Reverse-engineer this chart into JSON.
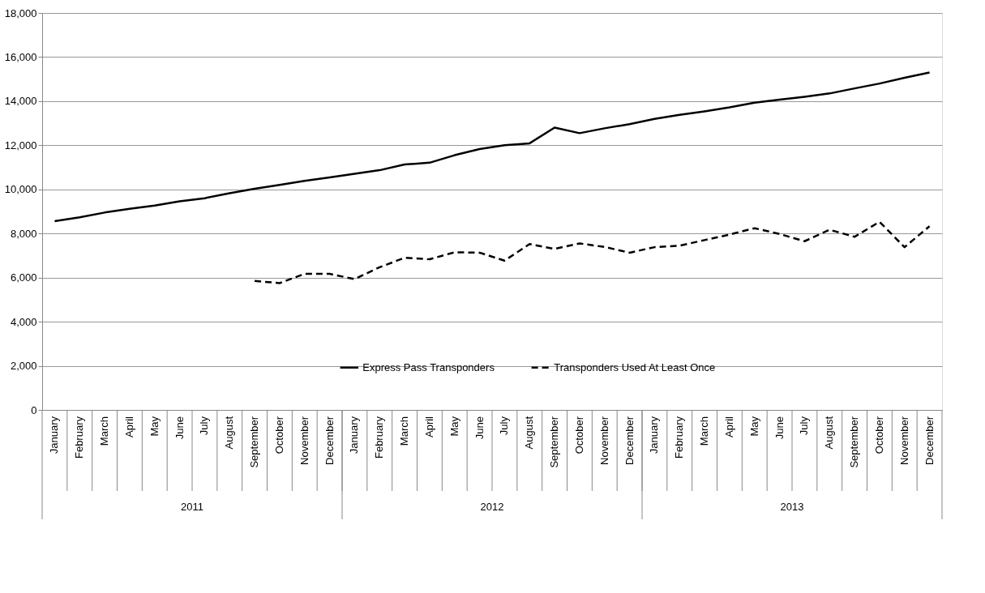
{
  "chart_data": {
    "type": "line",
    "categories": [
      "January",
      "February",
      "March",
      "April",
      "May",
      "June",
      "July",
      "August",
      "September",
      "October",
      "November",
      "December",
      "January",
      "February",
      "March",
      "April",
      "May",
      "June",
      "July",
      "August",
      "September",
      "October",
      "November",
      "December",
      "January",
      "February",
      "March",
      "April",
      "May",
      "June",
      "July",
      "August",
      "September",
      "October",
      "November",
      "December"
    ],
    "annotations": [
      "2011",
      "2012",
      "2013"
    ],
    "series": [
      {
        "name": "Express Pass Transponders",
        "color": "#000000",
        "line_style": "solid",
        "values": [
          8560,
          8730,
          8950,
          9120,
          9270,
          9460,
          9600,
          9830,
          10030,
          10200,
          10390,
          10540,
          10710,
          10870,
          11130,
          11210,
          11550,
          11830,
          12000,
          12090,
          12800,
          12550,
          12770,
          12960,
          13200,
          13380,
          13540,
          13720,
          13930,
          14070,
          14200,
          14350,
          14580,
          14800,
          15060,
          15300
        ]
      },
      {
        "name": "Transponders Used At Least Once",
        "color": "#000000",
        "line_style": "dashed",
        "values": [
          null,
          null,
          null,
          null,
          null,
          null,
          null,
          null,
          5850,
          5750,
          6170,
          6170,
          5930,
          6470,
          6900,
          6830,
          7150,
          7130,
          6770,
          7520,
          7300,
          7550,
          7390,
          7130,
          7380,
          7450,
          7700,
          7950,
          8240,
          7980,
          7650,
          8170,
          7850,
          8530,
          7380,
          8330
        ]
      }
    ],
    "ylim": [
      0,
      18000
    ],
    "yticks": [
      0,
      {
        "value": 2000,
        "label": "2,000"
      },
      {
        "value": 4000,
        "label": "4,000"
      },
      {
        "value": 6000,
        "label": "6,000"
      },
      {
        "value": 8000,
        "label": "8,000"
      },
      {
        "value": 10000,
        "label": "10,000"
      },
      {
        "value": 12000,
        "label": "12,000"
      },
      {
        "value": 14000,
        "label": "14,000"
      },
      {
        "value": 16000,
        "label": "16,000"
      },
      {
        "value": 18000,
        "label": "18,000"
      }
    ],
    "grid": "y",
    "legend": "bottom",
    "marker": "none"
  }
}
